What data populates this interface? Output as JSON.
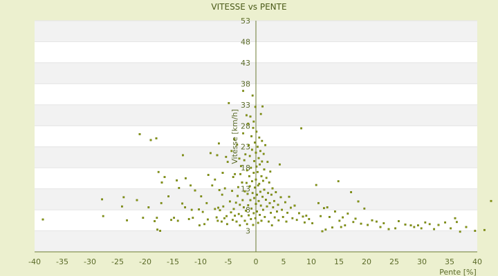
{
  "chart_data": {
    "type": "scatter",
    "title": "VITESSE vs PENTE",
    "xlabel": "Pente [%]",
    "ylabel": "Vitesse [km/h]",
    "xlim": [
      -40,
      40
    ],
    "ylim": [
      -2,
      53
    ],
    "x_ticks": [
      "-40",
      "-35",
      "-30",
      "-25",
      "-20",
      "-15",
      "-10",
      "-5",
      "0",
      "5",
      "10",
      "15",
      "20",
      "25",
      "30",
      "35",
      "40"
    ],
    "y_ticks": [
      "3",
      "8",
      "13",
      "18",
      "23",
      "28",
      "33",
      "38",
      "43",
      "48",
      "53"
    ],
    "grid": "horizontal bands",
    "legend": "none",
    "colors": {
      "background": "#ecf0cf",
      "band_light": "#ffffff",
      "band_dark": "#f2f2f2",
      "axis": "#6b7a30",
      "point": "#8a9a10"
    },
    "series": [
      {
        "points": [
          [
            -38.5,
            5.7
          ],
          [
            -27.8,
            10.5
          ],
          [
            -27.6,
            6.5
          ],
          [
            -24.2,
            8.8
          ],
          [
            -23.9,
            11.0
          ],
          [
            -23.3,
            5.5
          ],
          [
            -21.5,
            10.3
          ],
          [
            -21.0,
            26.0
          ],
          [
            -20.4,
            6.1
          ],
          [
            -19.4,
            8.6
          ],
          [
            -19.0,
            24.6
          ],
          [
            -18.3,
            5.3
          ],
          [
            -18.0,
            25.0
          ],
          [
            -17.9,
            6.1
          ],
          [
            -17.8,
            3.3
          ],
          [
            -17.6,
            17.0
          ],
          [
            -17.3,
            3.0
          ],
          [
            -17.0,
            14.5
          ],
          [
            -17.1,
            9.6
          ],
          [
            -16.5,
            15.8
          ],
          [
            -15.8,
            11.2
          ],
          [
            -15.3,
            5.6
          ],
          [
            -14.8,
            6.1
          ],
          [
            -14.3,
            15.0
          ],
          [
            -14.1,
            5.4
          ],
          [
            -13.9,
            13.2
          ],
          [
            -13.3,
            9.5
          ],
          [
            -13.2,
            21.0
          ],
          [
            -12.8,
            8.6
          ],
          [
            -12.7,
            15.5
          ],
          [
            -12.1,
            5.8
          ],
          [
            -11.8,
            13.8
          ],
          [
            -11.6,
            8.0
          ],
          [
            -11.4,
            6.1
          ],
          [
            -11.0,
            12.6
          ],
          [
            -10.3,
            8.1
          ],
          [
            -10.2,
            4.3
          ],
          [
            -9.9,
            11.2
          ],
          [
            -9.6,
            7.5
          ],
          [
            -9.3,
            4.6
          ],
          [
            -8.9,
            9.6
          ],
          [
            -8.7,
            5.7
          ],
          [
            -8.6,
            16.3
          ],
          [
            -8.2,
            21.5
          ],
          [
            -7.9,
            13.8
          ],
          [
            -7.4,
            8.2
          ],
          [
            -7.4,
            15.2
          ],
          [
            -7.1,
            6.2
          ],
          [
            -7.0,
            21.0
          ],
          [
            -6.9,
            5.4
          ],
          [
            -6.8,
            8.5
          ],
          [
            -6.6,
            12.7
          ],
          [
            -6.7,
            23.8
          ],
          [
            -6.5,
            7.9
          ],
          [
            -6.2,
            5.2
          ],
          [
            -6.1,
            11.6
          ],
          [
            -6.0,
            16.8
          ],
          [
            -5.9,
            8.8
          ],
          [
            -5.7,
            6.0
          ],
          [
            -5.6,
            13.1
          ],
          [
            -5.4,
            20.6
          ],
          [
            -5.3,
            6.5
          ],
          [
            -5.2,
            4.6
          ],
          [
            -5.1,
            19.4
          ],
          [
            -4.9,
            33.4
          ],
          [
            -4.7,
            10.0
          ],
          [
            -4.5,
            7.4
          ],
          [
            -4.4,
            22.0
          ],
          [
            -4.3,
            12.5
          ],
          [
            -4.2,
            5.6
          ],
          [
            -4.1,
            15.8
          ],
          [
            -4.0,
            8.2
          ],
          [
            -3.9,
            24.8
          ],
          [
            -3.8,
            6.6
          ],
          [
            -3.8,
            16.5
          ],
          [
            -3.6,
            9.7
          ],
          [
            -3.5,
            5.2
          ],
          [
            -3.4,
            23.5
          ],
          [
            -3.3,
            11.3
          ],
          [
            -3.2,
            13.4
          ],
          [
            -3.1,
            7.0
          ],
          [
            -3.0,
            20.2
          ],
          [
            -2.9,
            9.2
          ],
          [
            -2.9,
            4.3
          ],
          [
            -2.8,
            16.5
          ],
          [
            -2.7,
            18.4
          ],
          [
            -2.6,
            6.5
          ],
          [
            -2.5,
            14.5
          ],
          [
            -2.4,
            10.3
          ],
          [
            -2.3,
            36.3
          ],
          [
            -2.3,
            26.2
          ],
          [
            -2.2,
            8.6
          ],
          [
            -2.1,
            19.8
          ],
          [
            -2.0,
            12.4
          ],
          [
            -2.0,
            5.4
          ],
          [
            -1.9,
            21.2
          ],
          [
            -1.8,
            7.8
          ],
          [
            -1.7,
            14.4
          ],
          [
            -1.7,
            30.5
          ],
          [
            -1.6,
            17.4
          ],
          [
            -1.6,
            4.6
          ],
          [
            -1.5,
            11.8
          ],
          [
            -1.4,
            28.5
          ],
          [
            -1.4,
            9.1
          ],
          [
            -1.3,
            23.4
          ],
          [
            -1.3,
            6.7
          ],
          [
            -1.2,
            16.0
          ],
          [
            -1.1,
            13.6
          ],
          [
            -1.1,
            20.8
          ],
          [
            -1.0,
            30.2
          ],
          [
            -1.0,
            10.3
          ],
          [
            -0.9,
            5.8
          ],
          [
            -0.9,
            18.0
          ],
          [
            -0.8,
            8.3
          ],
          [
            -0.8,
            25.5
          ],
          [
            -0.7,
            14.8
          ],
          [
            -0.7,
            22.3
          ],
          [
            -0.6,
            35.2
          ],
          [
            -0.6,
            12.0
          ],
          [
            -0.5,
            4.4
          ],
          [
            -0.5,
            27.5
          ],
          [
            -0.4,
            16.8
          ],
          [
            -0.4,
            7.2
          ],
          [
            -0.4,
            29.0
          ],
          [
            -0.3,
            19.6
          ],
          [
            -0.3,
            10.8
          ],
          [
            -0.2,
            24.0
          ],
          [
            -0.2,
            13.3
          ],
          [
            -0.1,
            32.5
          ],
          [
            -0.1,
            6.0
          ],
          [
            0.0,
            21.6
          ],
          [
            0.0,
            15.2
          ],
          [
            0.0,
            9.4
          ],
          [
            0.1,
            18.3
          ],
          [
            0.1,
            26.6
          ],
          [
            0.2,
            11.6
          ],
          [
            0.2,
            7.6
          ],
          [
            0.3,
            23.0
          ],
          [
            0.3,
            17.0
          ],
          [
            0.4,
            13.8
          ],
          [
            0.4,
            4.9
          ],
          [
            0.5,
            20.3
          ],
          [
            0.5,
            10.1
          ],
          [
            0.6,
            25.2
          ],
          [
            0.6,
            14.2
          ],
          [
            0.7,
            6.8
          ],
          [
            0.7,
            18.8
          ],
          [
            0.8,
            12.3
          ],
          [
            0.8,
            22.0
          ],
          [
            0.9,
            9.0
          ],
          [
            0.9,
            30.8
          ],
          [
            1.0,
            16.0
          ],
          [
            1.0,
            5.4
          ],
          [
            1.1,
            24.4
          ],
          [
            1.1,
            19.5
          ],
          [
            1.2,
            11.1
          ],
          [
            1.2,
            32.6
          ],
          [
            1.3,
            14.9
          ],
          [
            1.3,
            8.0
          ],
          [
            1.4,
            21.3
          ],
          [
            1.5,
            12.8
          ],
          [
            1.5,
            17.6
          ],
          [
            1.6,
            6.3
          ],
          [
            1.7,
            23.4
          ],
          [
            1.8,
            10.4
          ],
          [
            1.9,
            15.6
          ],
          [
            2.0,
            8.8
          ],
          [
            2.1,
            19.4
          ],
          [
            2.2,
            12.0
          ],
          [
            2.3,
            5.2
          ],
          [
            2.4,
            14.5
          ],
          [
            2.5,
            9.6
          ],
          [
            2.6,
            17.1
          ],
          [
            2.7,
            7.3
          ],
          [
            2.8,
            11.6
          ],
          [
            2.9,
            4.3
          ],
          [
            3.0,
            13.1
          ],
          [
            3.1,
            8.6
          ],
          [
            3.3,
            10.1
          ],
          [
            3.4,
            6.2
          ],
          [
            3.6,
            12.2
          ],
          [
            3.8,
            7.6
          ],
          [
            4.0,
            9.2
          ],
          [
            4.1,
            5.5
          ],
          [
            4.3,
            18.8
          ],
          [
            4.5,
            11.0
          ],
          [
            4.7,
            8.0
          ],
          [
            4.9,
            6.3
          ],
          [
            5.3,
            9.8
          ],
          [
            5.5,
            5.2
          ],
          [
            5.7,
            7.3
          ],
          [
            6.0,
            11.1
          ],
          [
            6.3,
            8.5
          ],
          [
            6.6,
            6.0
          ],
          [
            7.0,
            9.0
          ],
          [
            7.4,
            5.6
          ],
          [
            7.8,
            7.2
          ],
          [
            8.2,
            27.4
          ],
          [
            8.5,
            6.4
          ],
          [
            8.8,
            5.0
          ],
          [
            9.1,
            6.6
          ],
          [
            9.6,
            5.8
          ],
          [
            10.2,
            4.8
          ],
          [
            10.9,
            13.9
          ],
          [
            11.3,
            9.6
          ],
          [
            11.7,
            6.5
          ],
          [
            12.0,
            2.9
          ],
          [
            12.3,
            8.4
          ],
          [
            12.6,
            3.3
          ],
          [
            12.9,
            8.6
          ],
          [
            13.3,
            6.3
          ],
          [
            13.8,
            3.8
          ],
          [
            14.3,
            7.6
          ],
          [
            14.9,
            14.8
          ],
          [
            15.1,
            5.4
          ],
          [
            15.4,
            3.9
          ],
          [
            15.7,
            6.2
          ],
          [
            16.1,
            4.3
          ],
          [
            16.6,
            7.1
          ],
          [
            17.2,
            12.2
          ],
          [
            17.6,
            5.1
          ],
          [
            18.0,
            5.9
          ],
          [
            18.5,
            10.0
          ],
          [
            19.0,
            4.7
          ],
          [
            19.6,
            8.3
          ],
          [
            20.2,
            4.4
          ],
          [
            21.0,
            5.5
          ],
          [
            21.8,
            5.2
          ],
          [
            22.5,
            3.9
          ],
          [
            23.1,
            4.8
          ],
          [
            24.0,
            3.4
          ],
          [
            25.2,
            3.6
          ],
          [
            25.8,
            5.3
          ],
          [
            27.0,
            4.5
          ],
          [
            28.0,
            4.3
          ],
          [
            28.6,
            3.9
          ],
          [
            29.3,
            4.3
          ],
          [
            29.9,
            3.6
          ],
          [
            30.6,
            5.0
          ],
          [
            31.4,
            4.6
          ],
          [
            32.2,
            3.4
          ],
          [
            33.0,
            4.4
          ],
          [
            34.2,
            5.0
          ],
          [
            35.2,
            3.6
          ],
          [
            36.0,
            6.0
          ],
          [
            36.3,
            5.1
          ],
          [
            36.9,
            2.8
          ],
          [
            38.0,
            3.9
          ],
          [
            39.6,
            3.0
          ],
          [
            41.3,
            3.2
          ],
          [
            42.5,
            10.1
          ]
        ]
      }
    ]
  }
}
